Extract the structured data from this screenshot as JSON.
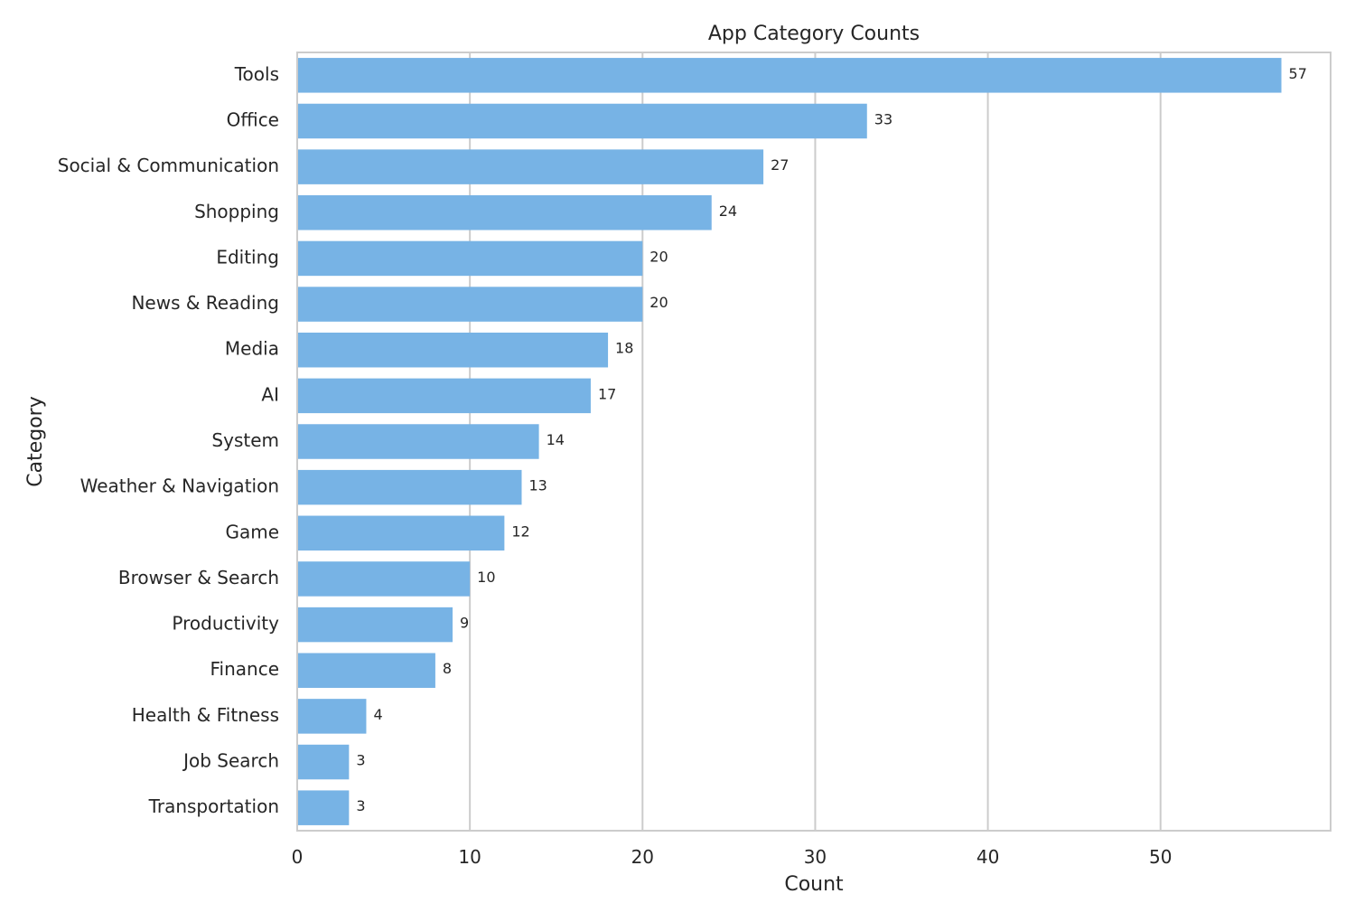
{
  "chart_data": {
    "type": "bar",
    "orientation": "horizontal",
    "title": "App Category Counts",
    "xlabel": "Count",
    "ylabel": "Category",
    "xlim": [
      0,
      59.85
    ],
    "xticks": [
      0,
      10,
      20,
      30,
      40,
      50
    ],
    "grid": "vertical",
    "legend": "none",
    "bar_color": "#77b3e5",
    "categories": [
      "Tools",
      "Office",
      "Social & Communication",
      "Shopping",
      "Editing",
      "News & Reading",
      "Media",
      "AI ",
      "System ",
      "Weather & Navigation",
      "Game",
      "Browser & Search",
      "Productivity",
      "Finance",
      "Health & Fitness",
      "Job Search",
      "Transportation"
    ],
    "values": [
      57,
      33,
      27,
      24,
      20,
      20,
      18,
      17,
      14,
      13,
      12,
      10,
      9,
      8,
      4,
      3,
      3
    ]
  }
}
